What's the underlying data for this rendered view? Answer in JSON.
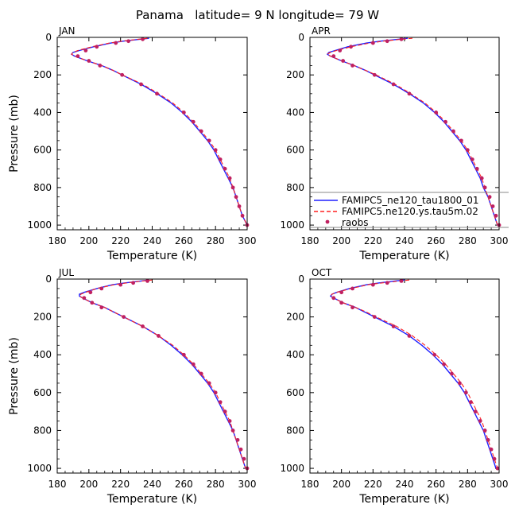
{
  "title": "Panama   latitude= 9 N longitude= 79 W",
  "legend": {
    "entries": [
      {
        "label": "FAMIPC5_ne120_tau1800_01",
        "color": "#2020ff",
        "style": "solid"
      },
      {
        "label": "FAMIPC5.ne120.ys.tau5m.02",
        "color": "#ff2020",
        "style": "dashed"
      },
      {
        "label": "raobs",
        "color": "#c02060",
        "style": "dots"
      }
    ]
  },
  "chart_data": [
    {
      "type": "line",
      "panel": "JAN",
      "xlabel": "Temperature (K)",
      "ylabel": "Pressure (mb)",
      "xlim": [
        180,
        300
      ],
      "ylim": [
        1025,
        0
      ],
      "y_inverted": true,
      "xticks": [
        180,
        200,
        220,
        240,
        260,
        280,
        300
      ],
      "yticks": [
        0,
        200,
        400,
        600,
        800,
        1000
      ],
      "series": [
        {
          "name": "FAMIPC5_ne120_tau1800_01",
          "p": [
            5,
            10,
            20,
            30,
            50,
            70,
            80,
            90,
            100,
            125,
            150,
            175,
            200,
            250,
            300,
            350,
            400,
            450,
            500,
            550,
            600,
            650,
            700,
            750,
            800,
            850,
            900,
            950,
            1000
          ],
          "t": [
            238,
            232,
            222,
            214,
            203,
            194,
            190,
            189,
            191,
            199,
            208,
            215,
            221,
            233,
            243,
            252,
            259,
            265,
            270,
            275,
            279,
            282,
            285,
            288,
            291,
            293,
            295,
            297,
            300
          ]
        },
        {
          "name": "FAMIPC5.ne120.ys.tau5m.02",
          "p": [
            5,
            10,
            20,
            30,
            50,
            70,
            80,
            90,
            100,
            125,
            150,
            175,
            200,
            250,
            300,
            350,
            400,
            450,
            500,
            550,
            600,
            650,
            700,
            750,
            800,
            850,
            900,
            950,
            1000
          ],
          "t": [
            237,
            231,
            221,
            213,
            202,
            193,
            190,
            189,
            191,
            199,
            208,
            215,
            221,
            234,
            244,
            253,
            260,
            266,
            271,
            276,
            280,
            283,
            286,
            289,
            291,
            293,
            295,
            297,
            300
          ]
        },
        {
          "name": "raobs",
          "p": [
            10,
            20,
            30,
            50,
            70,
            100,
            125,
            150,
            200,
            250,
            300,
            400,
            450,
            500,
            550,
            600,
            650,
            700,
            750,
            800,
            850,
            900,
            950,
            1000
          ],
          "t": [
            234,
            225,
            217,
            205,
            198,
            193,
            200,
            207,
            221,
            233,
            243,
            260,
            266,
            271,
            276,
            280,
            283,
            286,
            289,
            291,
            293,
            295,
            297,
            300
          ]
        }
      ]
    },
    {
      "type": "line",
      "panel": "APR",
      "xlabel": "Temperature (K)",
      "ylabel": "",
      "xlim": [
        180,
        300
      ],
      "ylim": [
        1025,
        0
      ],
      "y_inverted": true,
      "xticks": [
        180,
        200,
        220,
        240,
        260,
        280,
        300
      ],
      "yticks": [
        0,
        200,
        400,
        600,
        800,
        1000
      ],
      "series": [
        {
          "name": "FAMIPC5_ne120_tau1800_01",
          "p": [
            5,
            10,
            20,
            30,
            50,
            70,
            80,
            90,
            100,
            125,
            150,
            175,
            200,
            250,
            300,
            350,
            400,
            450,
            500,
            550,
            600,
            650,
            700,
            750,
            800,
            850,
            900,
            950,
            1000
          ],
          "t": [
            242,
            236,
            225,
            216,
            204,
            196,
            192,
            191,
            193,
            200,
            208,
            215,
            221,
            233,
            243,
            252,
            259,
            265,
            270,
            275,
            279,
            282,
            285,
            288,
            290,
            293,
            295,
            297,
            299
          ]
        },
        {
          "name": "FAMIPC5.ne120.ys.tau5m.02",
          "p": [
            5,
            10,
            20,
            30,
            50,
            70,
            80,
            90,
            100,
            125,
            150,
            175,
            200,
            250,
            300,
            350,
            400,
            450,
            500,
            550,
            600,
            650,
            700,
            750,
            800,
            850,
            900,
            950,
            1000
          ],
          "t": [
            245,
            238,
            227,
            218,
            206,
            197,
            193,
            191,
            193,
            200,
            208,
            215,
            222,
            234,
            244,
            253,
            260,
            266,
            271,
            276,
            280,
            283,
            286,
            289,
            291,
            293,
            295,
            297,
            299
          ]
        },
        {
          "name": "raobs",
          "p": [
            10,
            20,
            30,
            50,
            70,
            100,
            125,
            150,
            200,
            250,
            300,
            400,
            450,
            500,
            550,
            600,
            650,
            700,
            750,
            800,
            850,
            900,
            950,
            1000
          ],
          "t": [
            238,
            229,
            220,
            206,
            199,
            195,
            201,
            207,
            221,
            233,
            243,
            260,
            266,
            271,
            276,
            280,
            283,
            286,
            289,
            291,
            294,
            296,
            298,
            300
          ]
        }
      ]
    },
    {
      "type": "line",
      "panel": "JUL",
      "xlabel": "Temperature (K)",
      "ylabel": "Pressure (mb)",
      "xlim": [
        180,
        300
      ],
      "ylim": [
        1025,
        0
      ],
      "y_inverted": true,
      "xticks": [
        180,
        200,
        220,
        240,
        260,
        280,
        300
      ],
      "yticks": [
        0,
        200,
        400,
        600,
        800,
        1000
      ],
      "series": [
        {
          "name": "FAMIPC5_ne120_tau1800_01",
          "p": [
            5,
            10,
            20,
            30,
            50,
            70,
            80,
            90,
            100,
            125,
            150,
            175,
            200,
            250,
            300,
            350,
            400,
            450,
            500,
            550,
            600,
            650,
            700,
            750,
            800,
            850,
            900,
            950,
            1000
          ],
          "t": [
            238,
            233,
            223,
            215,
            205,
            197,
            194,
            194,
            196,
            202,
            210,
            216,
            222,
            234,
            244,
            252,
            259,
            265,
            270,
            275,
            279,
            282,
            285,
            288,
            291,
            293,
            295,
            297,
            299
          ]
        },
        {
          "name": "FAMIPC5.ne120.ys.tau5m.02",
          "p": [
            5,
            10,
            20,
            30,
            50,
            70,
            80,
            90,
            100,
            125,
            150,
            175,
            200,
            250,
            300,
            350,
            400,
            450,
            500,
            550,
            600,
            650,
            700,
            750,
            800,
            850,
            900,
            950,
            1000
          ],
          "t": [
            240,
            234,
            224,
            216,
            205,
            198,
            195,
            194,
            196,
            202,
            210,
            216,
            222,
            234,
            244,
            253,
            260,
            266,
            271,
            276,
            280,
            283,
            286,
            289,
            291,
            293,
            295,
            297,
            299
          ]
        },
        {
          "name": "raobs",
          "p": [
            10,
            20,
            30,
            50,
            70,
            100,
            125,
            150,
            200,
            250,
            300,
            400,
            450,
            500,
            550,
            600,
            650,
            700,
            750,
            800,
            850,
            900,
            950,
            1000
          ],
          "t": [
            237,
            228,
            220,
            208,
            201,
            197,
            202,
            208,
            222,
            234,
            244,
            260,
            266,
            271,
            276,
            280,
            283,
            286,
            289,
            291,
            294,
            296,
            298,
            300
          ]
        }
      ]
    },
    {
      "type": "line",
      "panel": "OCT",
      "xlabel": "Temperature (K)",
      "ylabel": "",
      "xlim": [
        180,
        300
      ],
      "ylim": [
        1025,
        0
      ],
      "y_inverted": true,
      "xticks": [
        180,
        200,
        220,
        240,
        260,
        280,
        300
      ],
      "yticks": [
        0,
        200,
        400,
        600,
        800,
        1000
      ],
      "series": [
        {
          "name": "FAMIPC5_ne120_tau1800_01",
          "p": [
            5,
            10,
            20,
            30,
            50,
            70,
            80,
            90,
            100,
            125,
            150,
            175,
            200,
            250,
            300,
            350,
            400,
            450,
            500,
            550,
            600,
            650,
            700,
            750,
            800,
            850,
            900,
            950,
            1000
          ],
          "t": [
            240,
            234,
            224,
            216,
            205,
            197,
            194,
            193,
            195,
            201,
            209,
            215,
            221,
            233,
            243,
            251,
            258,
            264,
            269,
            274,
            278,
            281,
            284,
            287,
            290,
            292,
            294,
            296,
            298
          ]
        },
        {
          "name": "FAMIPC5.ne120.ys.tau5m.02",
          "p": [
            5,
            10,
            20,
            30,
            50,
            70,
            80,
            90,
            100,
            125,
            150,
            175,
            200,
            250,
            300,
            350,
            400,
            450,
            500,
            550,
            600,
            650,
            700,
            750,
            800,
            850,
            900,
            950,
            1000
          ],
          "t": [
            243,
            237,
            226,
            217,
            206,
            197,
            194,
            193,
            195,
            201,
            209,
            216,
            222,
            235,
            245,
            253,
            260,
            266,
            271,
            276,
            280,
            283,
            286,
            289,
            291,
            293,
            295,
            297,
            299
          ]
        },
        {
          "name": "raobs",
          "p": [
            10,
            20,
            30,
            50,
            70,
            100,
            125,
            150,
            200,
            250,
            300,
            400,
            450,
            500,
            550,
            600,
            650,
            700,
            750,
            800,
            850,
            900,
            950,
            1000
          ],
          "t": [
            238,
            229,
            220,
            207,
            200,
            195,
            200,
            207,
            221,
            233,
            243,
            259,
            265,
            270,
            275,
            279,
            282,
            285,
            288,
            291,
            293,
            295,
            297,
            299
          ]
        }
      ]
    }
  ]
}
